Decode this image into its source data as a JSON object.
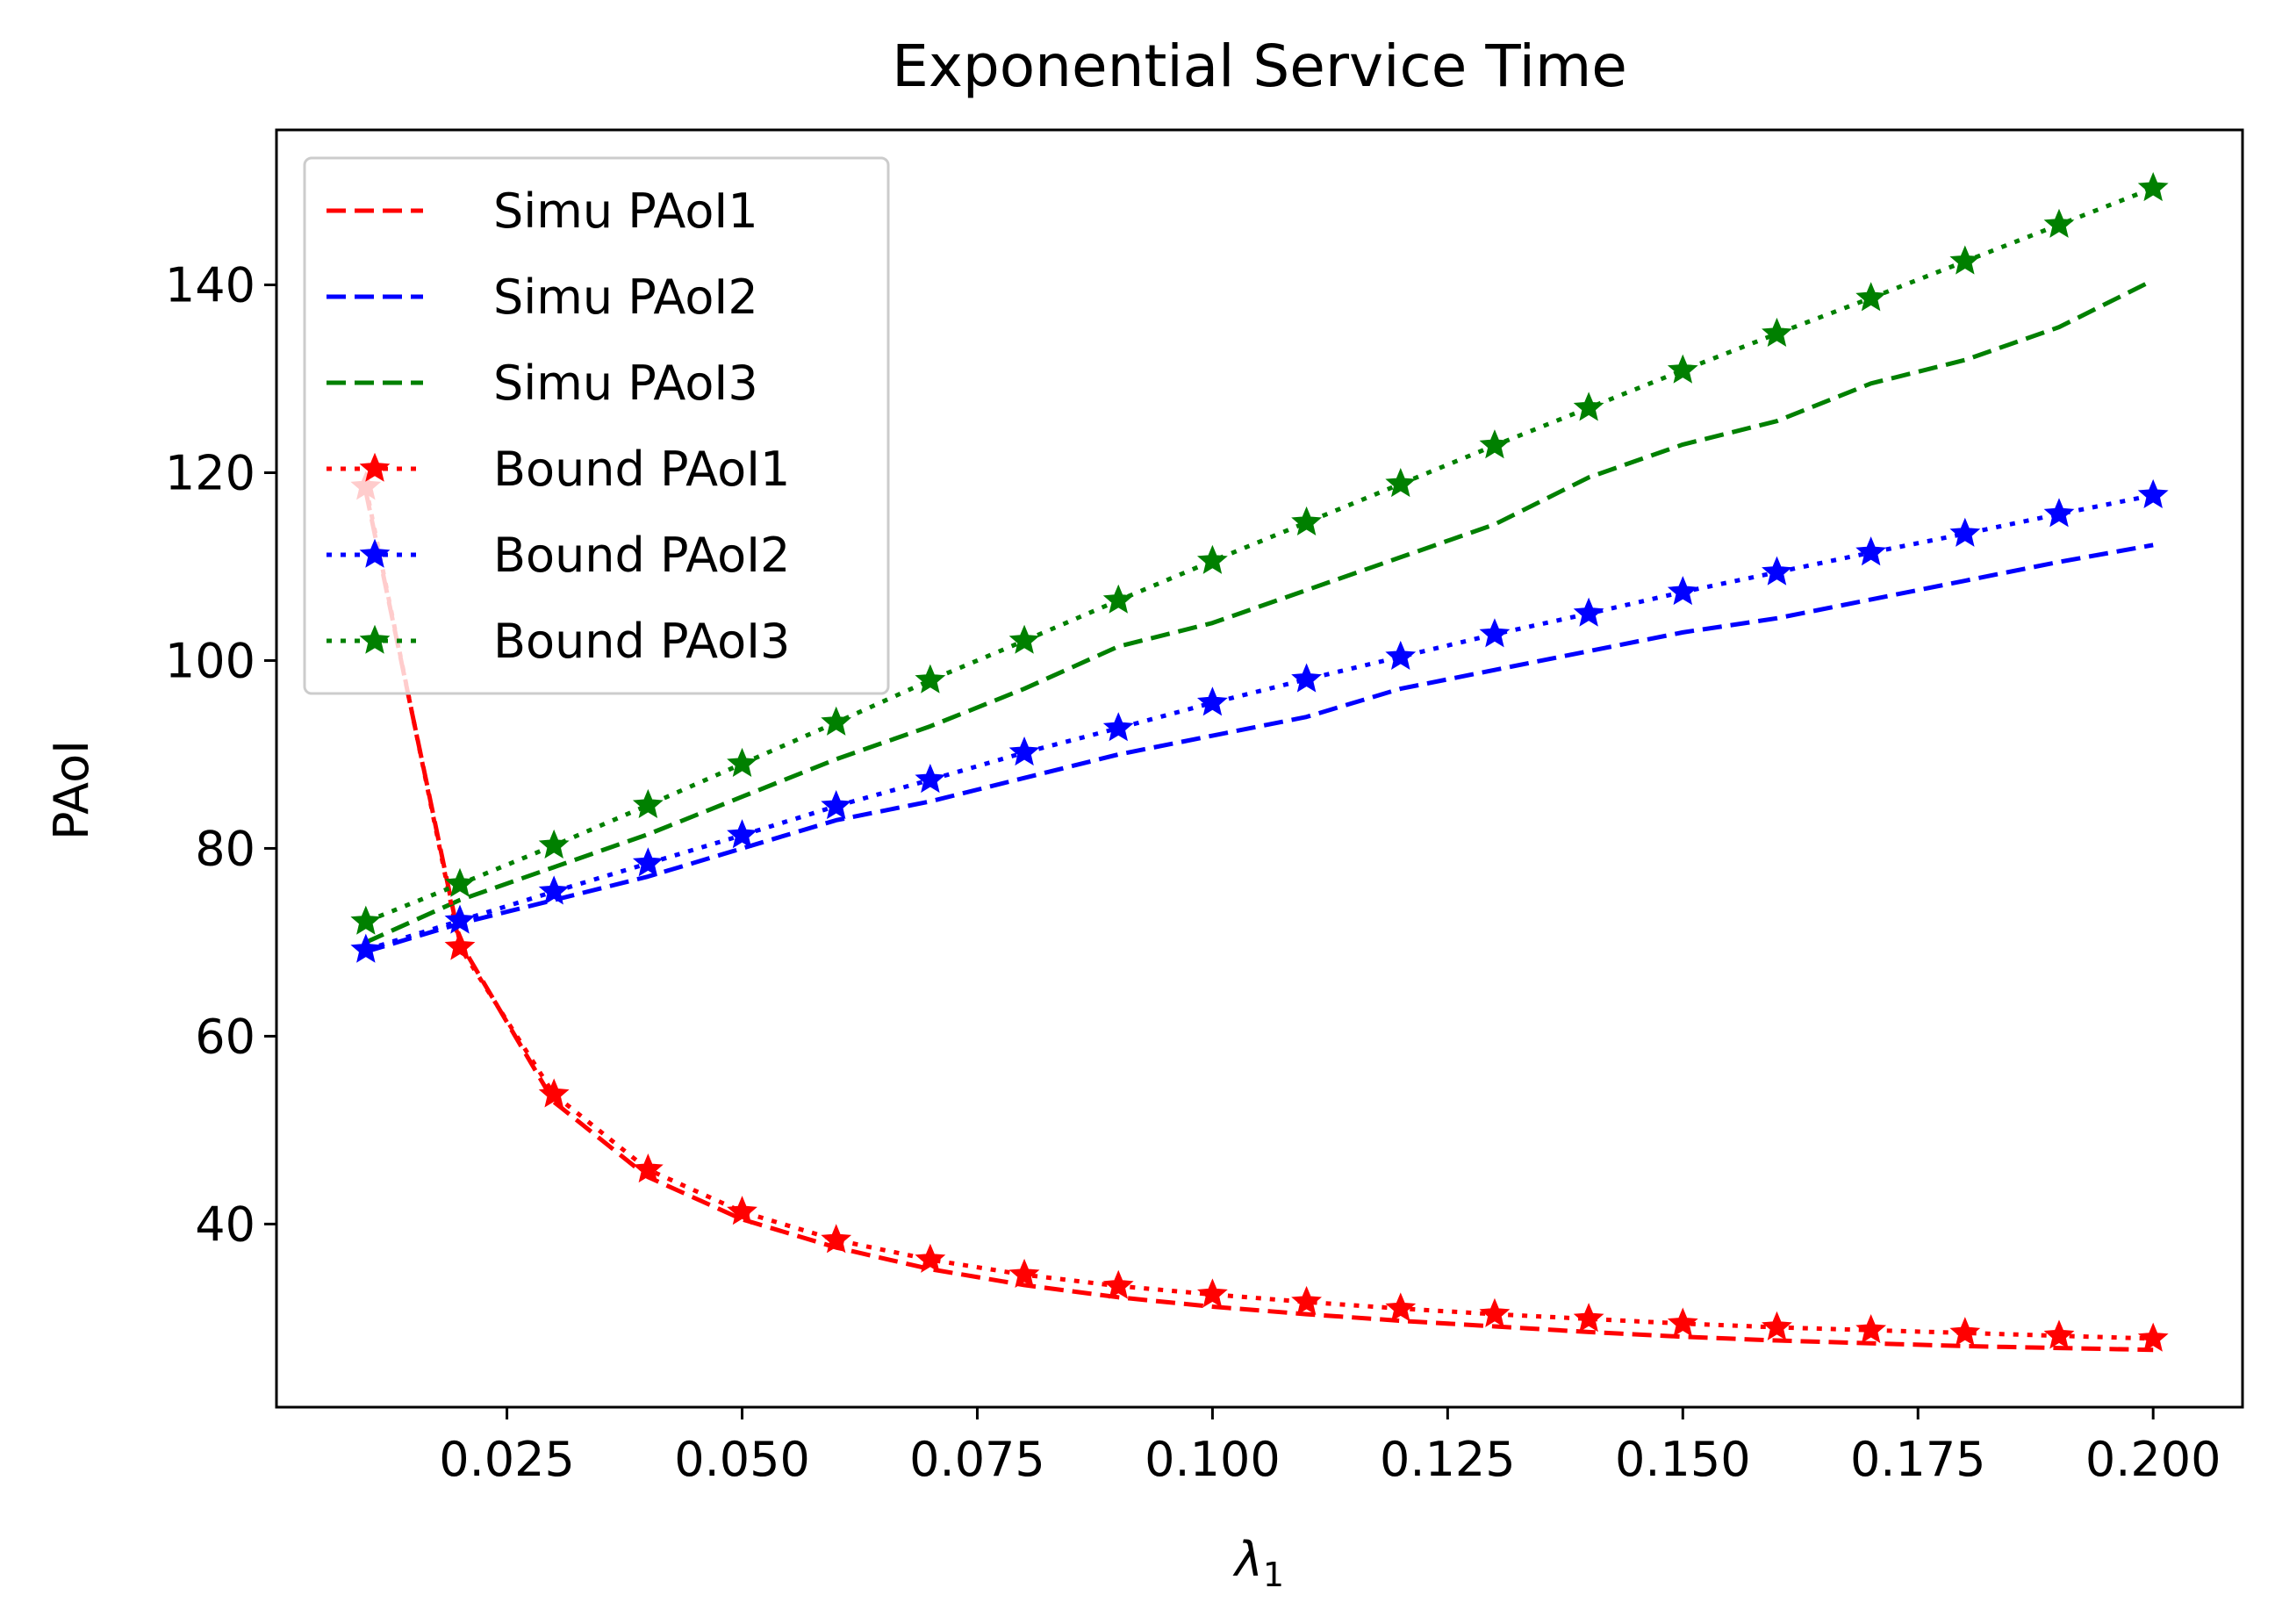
{
  "chart_data": {
    "type": "line",
    "title": "Exponential Service Time",
    "xlabel": "λ",
    "xlabel_subscript": "1",
    "ylabel": "PAoI",
    "xlim": [
      0.0005,
      0.2095
    ],
    "ylim": [
      20.5,
      156.5
    ],
    "x_ticks": [
      0.025,
      0.05,
      0.075,
      0.1,
      0.125,
      0.15,
      0.175,
      0.2
    ],
    "x_tick_labels": [
      "0.025",
      "0.050",
      "0.075",
      "0.100",
      "0.125",
      "0.150",
      "0.175",
      "0.200"
    ],
    "y_ticks": [
      40,
      60,
      80,
      100,
      120,
      140
    ],
    "y_tick_labels": [
      "40",
      "60",
      "80",
      "100",
      "120",
      "140"
    ],
    "legend_position": "upper-left",
    "x": [
      0.01,
      0.02,
      0.03,
      0.04,
      0.05,
      0.06,
      0.07,
      0.08,
      0.09,
      0.1,
      0.11,
      0.12,
      0.13,
      0.14,
      0.15,
      0.16,
      0.17,
      0.18,
      0.19,
      0.2
    ],
    "series": [
      {
        "name": "Simu PAoI1",
        "color": "#ff0000",
        "style": "dashed",
        "marker": "none",
        "values": [
          118,
          70,
          53,
          45,
          40.5,
          37.5,
          35.2,
          33.5,
          32.2,
          31.2,
          30.4,
          29.7,
          29.1,
          28.5,
          28,
          27.6,
          27.3,
          27,
          26.8,
          26.6
        ]
      },
      {
        "name": "Simu PAoI2",
        "color": "#0000ff",
        "style": "dashed",
        "marker": "none",
        "values": [
          69,
          72,
          74.5,
          77,
          80,
          83,
          85,
          87.5,
          90,
          92,
          94,
          97,
          99,
          101,
          103,
          104.5,
          106.5,
          108.5,
          110.5,
          112.3
        ]
      },
      {
        "name": "Simu PAoI3",
        "color": "#008000",
        "style": "dashed",
        "marker": "none",
        "values": [
          70,
          74.5,
          78,
          81.5,
          85.5,
          89.5,
          93,
          97,
          101.5,
          104,
          107.5,
          111,
          114.5,
          119.5,
          123,
          125.5,
          129.5,
          132,
          135.5,
          140.5
        ]
      },
      {
        "name": "Bound PAoI1",
        "color": "#ff0000",
        "style": "dotted",
        "marker": "star",
        "values": [
          118.5,
          69.5,
          53.8,
          45.8,
          41.3,
          38.3,
          36.2,
          34.6,
          33.4,
          32.5,
          31.7,
          31,
          30.4,
          29.9,
          29.4,
          29,
          28.7,
          28.4,
          28.1,
          27.8
        ]
      },
      {
        "name": "Bound PAoI2",
        "color": "#0000ff",
        "style": "dotted",
        "marker": "star",
        "values": [
          69.2,
          72.3,
          75.4,
          78.4,
          81.4,
          84.5,
          87.3,
          90.2,
          92.8,
          95.5,
          98,
          100.4,
          102.8,
          105,
          107.3,
          109.4,
          111.5,
          113.5,
          115.6,
          117.6
        ]
      },
      {
        "name": "Bound PAoI3",
        "color": "#008000",
        "style": "dotted",
        "marker": "star",
        "values": [
          72.2,
          76.2,
          80.3,
          84.6,
          89,
          93.4,
          97.9,
          102.1,
          106.4,
          110.6,
          114.7,
          118.8,
          122.9,
          126.9,
          130.9,
          134.8,
          138.6,
          142.5,
          146.4,
          150.3
        ]
      }
    ]
  }
}
